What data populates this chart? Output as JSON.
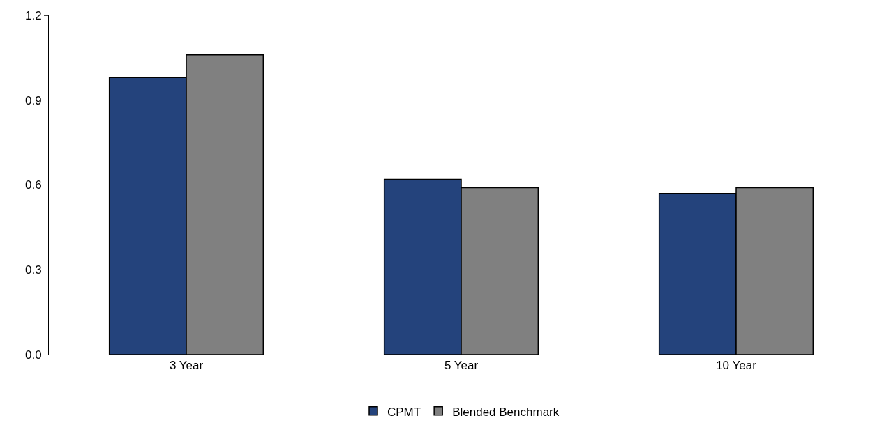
{
  "chart_data": {
    "type": "bar",
    "categories": [
      "3 Year",
      "5 Year",
      "10 Year"
    ],
    "series": [
      {
        "name": "CPMT",
        "color": "#24437c",
        "values": [
          0.98,
          0.62,
          0.57
        ]
      },
      {
        "name": "Blended Benchmark",
        "color": "#808080",
        "values": [
          1.06,
          0.59,
          0.59
        ]
      }
    ],
    "ylim": [
      0,
      1.2
    ],
    "yticks": [
      {
        "value": 0,
        "label": "0.0"
      },
      0.3,
      0.6,
      0.9,
      1.2
    ],
    "grid": false,
    "legend": "bottom"
  }
}
